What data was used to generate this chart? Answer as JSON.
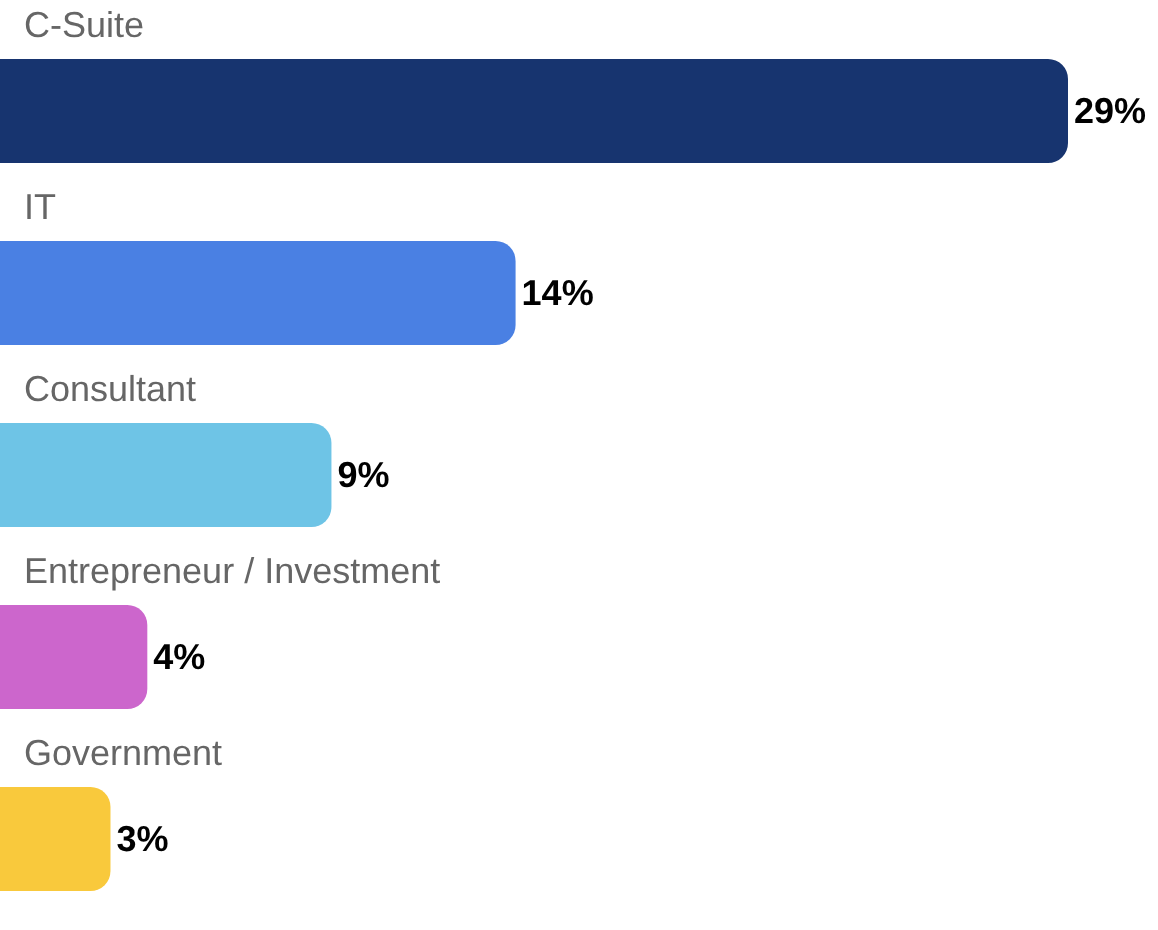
{
  "chart_data": {
    "type": "bar",
    "orientation": "horizontal",
    "categories": [
      "C-Suite",
      "IT",
      "Consultant",
      "Entrepreneur / Investment",
      "Government"
    ],
    "values": [
      29,
      14,
      9,
      4,
      3
    ],
    "colors": [
      "#17346f",
      "#4a80e3",
      "#6ec4e6",
      "#cc66cc",
      "#f9c93c"
    ],
    "value_labels": [
      "29%",
      "14%",
      "9%",
      "4%",
      "3%"
    ]
  }
}
